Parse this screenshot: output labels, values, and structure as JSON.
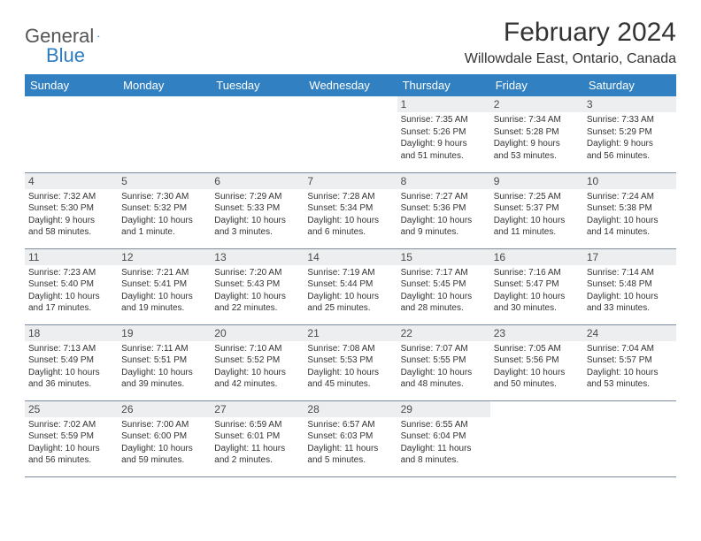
{
  "brand": {
    "part1": "General",
    "part2": "Blue"
  },
  "title": "February 2024",
  "location": "Willowdale East, Ontario, Canada",
  "colors": {
    "header_bg": "#3180c2",
    "header_text": "#ffffff",
    "daynum_bg": "#eceeef",
    "border": "#7a8aa0",
    "brand_blue": "#2e7cc0",
    "text": "#333333"
  },
  "weekdays": [
    "Sunday",
    "Monday",
    "Tuesday",
    "Wednesday",
    "Thursday",
    "Friday",
    "Saturday"
  ],
  "rows": [
    [
      null,
      null,
      null,
      null,
      {
        "n": "1",
        "sr": "Sunrise: 7:35 AM",
        "ss": "Sunset: 5:26 PM",
        "d1": "Daylight: 9 hours",
        "d2": "and 51 minutes."
      },
      {
        "n": "2",
        "sr": "Sunrise: 7:34 AM",
        "ss": "Sunset: 5:28 PM",
        "d1": "Daylight: 9 hours",
        "d2": "and 53 minutes."
      },
      {
        "n": "3",
        "sr": "Sunrise: 7:33 AM",
        "ss": "Sunset: 5:29 PM",
        "d1": "Daylight: 9 hours",
        "d2": "and 56 minutes."
      }
    ],
    [
      {
        "n": "4",
        "sr": "Sunrise: 7:32 AM",
        "ss": "Sunset: 5:30 PM",
        "d1": "Daylight: 9 hours",
        "d2": "and 58 minutes."
      },
      {
        "n": "5",
        "sr": "Sunrise: 7:30 AM",
        "ss": "Sunset: 5:32 PM",
        "d1": "Daylight: 10 hours",
        "d2": "and 1 minute."
      },
      {
        "n": "6",
        "sr": "Sunrise: 7:29 AM",
        "ss": "Sunset: 5:33 PM",
        "d1": "Daylight: 10 hours",
        "d2": "and 3 minutes."
      },
      {
        "n": "7",
        "sr": "Sunrise: 7:28 AM",
        "ss": "Sunset: 5:34 PM",
        "d1": "Daylight: 10 hours",
        "d2": "and 6 minutes."
      },
      {
        "n": "8",
        "sr": "Sunrise: 7:27 AM",
        "ss": "Sunset: 5:36 PM",
        "d1": "Daylight: 10 hours",
        "d2": "and 9 minutes."
      },
      {
        "n": "9",
        "sr": "Sunrise: 7:25 AM",
        "ss": "Sunset: 5:37 PM",
        "d1": "Daylight: 10 hours",
        "d2": "and 11 minutes."
      },
      {
        "n": "10",
        "sr": "Sunrise: 7:24 AM",
        "ss": "Sunset: 5:38 PM",
        "d1": "Daylight: 10 hours",
        "d2": "and 14 minutes."
      }
    ],
    [
      {
        "n": "11",
        "sr": "Sunrise: 7:23 AM",
        "ss": "Sunset: 5:40 PM",
        "d1": "Daylight: 10 hours",
        "d2": "and 17 minutes."
      },
      {
        "n": "12",
        "sr": "Sunrise: 7:21 AM",
        "ss": "Sunset: 5:41 PM",
        "d1": "Daylight: 10 hours",
        "d2": "and 19 minutes."
      },
      {
        "n": "13",
        "sr": "Sunrise: 7:20 AM",
        "ss": "Sunset: 5:43 PM",
        "d1": "Daylight: 10 hours",
        "d2": "and 22 minutes."
      },
      {
        "n": "14",
        "sr": "Sunrise: 7:19 AM",
        "ss": "Sunset: 5:44 PM",
        "d1": "Daylight: 10 hours",
        "d2": "and 25 minutes."
      },
      {
        "n": "15",
        "sr": "Sunrise: 7:17 AM",
        "ss": "Sunset: 5:45 PM",
        "d1": "Daylight: 10 hours",
        "d2": "and 28 minutes."
      },
      {
        "n": "16",
        "sr": "Sunrise: 7:16 AM",
        "ss": "Sunset: 5:47 PM",
        "d1": "Daylight: 10 hours",
        "d2": "and 30 minutes."
      },
      {
        "n": "17",
        "sr": "Sunrise: 7:14 AM",
        "ss": "Sunset: 5:48 PM",
        "d1": "Daylight: 10 hours",
        "d2": "and 33 minutes."
      }
    ],
    [
      {
        "n": "18",
        "sr": "Sunrise: 7:13 AM",
        "ss": "Sunset: 5:49 PM",
        "d1": "Daylight: 10 hours",
        "d2": "and 36 minutes."
      },
      {
        "n": "19",
        "sr": "Sunrise: 7:11 AM",
        "ss": "Sunset: 5:51 PM",
        "d1": "Daylight: 10 hours",
        "d2": "and 39 minutes."
      },
      {
        "n": "20",
        "sr": "Sunrise: 7:10 AM",
        "ss": "Sunset: 5:52 PM",
        "d1": "Daylight: 10 hours",
        "d2": "and 42 minutes."
      },
      {
        "n": "21",
        "sr": "Sunrise: 7:08 AM",
        "ss": "Sunset: 5:53 PM",
        "d1": "Daylight: 10 hours",
        "d2": "and 45 minutes."
      },
      {
        "n": "22",
        "sr": "Sunrise: 7:07 AM",
        "ss": "Sunset: 5:55 PM",
        "d1": "Daylight: 10 hours",
        "d2": "and 48 minutes."
      },
      {
        "n": "23",
        "sr": "Sunrise: 7:05 AM",
        "ss": "Sunset: 5:56 PM",
        "d1": "Daylight: 10 hours",
        "d2": "and 50 minutes."
      },
      {
        "n": "24",
        "sr": "Sunrise: 7:04 AM",
        "ss": "Sunset: 5:57 PM",
        "d1": "Daylight: 10 hours",
        "d2": "and 53 minutes."
      }
    ],
    [
      {
        "n": "25",
        "sr": "Sunrise: 7:02 AM",
        "ss": "Sunset: 5:59 PM",
        "d1": "Daylight: 10 hours",
        "d2": "and 56 minutes."
      },
      {
        "n": "26",
        "sr": "Sunrise: 7:00 AM",
        "ss": "Sunset: 6:00 PM",
        "d1": "Daylight: 10 hours",
        "d2": "and 59 minutes."
      },
      {
        "n": "27",
        "sr": "Sunrise: 6:59 AM",
        "ss": "Sunset: 6:01 PM",
        "d1": "Daylight: 11 hours",
        "d2": "and 2 minutes."
      },
      {
        "n": "28",
        "sr": "Sunrise: 6:57 AM",
        "ss": "Sunset: 6:03 PM",
        "d1": "Daylight: 11 hours",
        "d2": "and 5 minutes."
      },
      {
        "n": "29",
        "sr": "Sunrise: 6:55 AM",
        "ss": "Sunset: 6:04 PM",
        "d1": "Daylight: 11 hours",
        "d2": "and 8 minutes."
      },
      null,
      null
    ]
  ]
}
